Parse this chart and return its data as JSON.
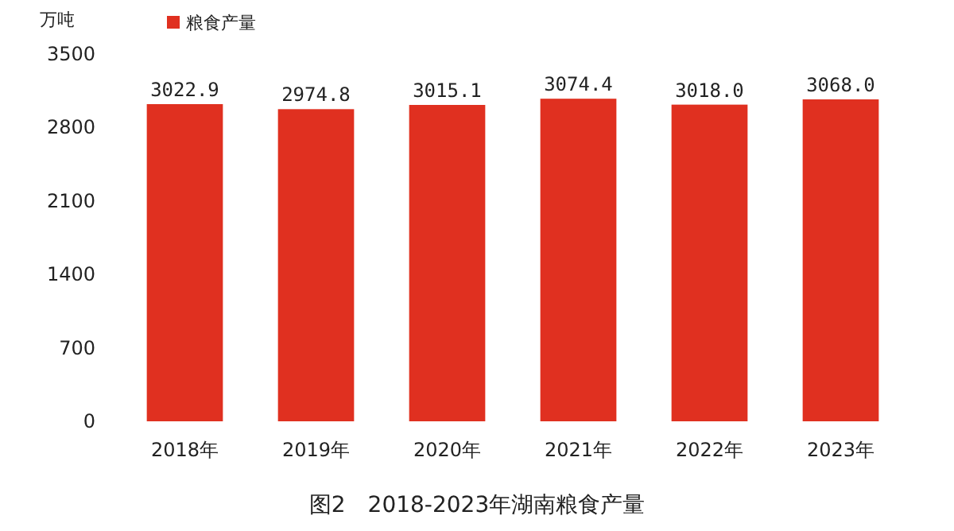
{
  "chart_data": {
    "type": "bar",
    "title": "图2　2018-2023年湖南粮食产量",
    "ylabel": "万吨",
    "categories": [
      "2018年",
      "2019年",
      "2020年",
      "2021年",
      "2022年",
      "2023年"
    ],
    "series": [
      {
        "name": "粮食产量",
        "color": "#e03020",
        "values": [
          3022.9,
          2974.8,
          3015.1,
          3074.4,
          3018.0,
          3068.0
        ]
      }
    ],
    "value_labels": [
      "3022.9",
      "2974.8",
      "3015.1",
      "3074.4",
      "3018.0",
      "3068.0"
    ],
    "ylim": [
      0,
      3500
    ],
    "yticks": [
      0,
      700,
      1400,
      2100,
      2800,
      3500
    ],
    "grid": false,
    "legend": "top left"
  }
}
